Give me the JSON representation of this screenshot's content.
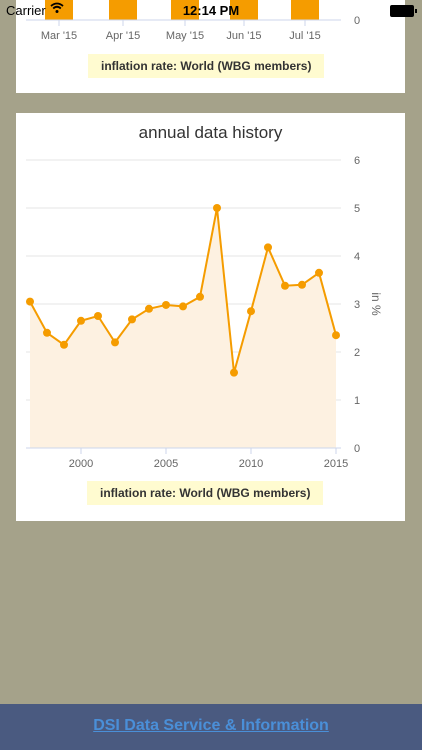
{
  "status_bar": {
    "carrier": "Carrier",
    "time": "12:14 PM"
  },
  "monthly_card": {
    "x_labels": [
      "Mar '15",
      "Apr '15",
      "May '15",
      "Jun '15",
      "Jul '15"
    ],
    "y_tick": "0",
    "legend": "inflation rate: World (WBG members)",
    "bar_color": "#f59c00"
  },
  "annual_card": {
    "title": "annual data history",
    "legend": "inflation rate: World (WBG members)",
    "chart_data": {
      "type": "area",
      "x": [
        1997,
        1998,
        1999,
        2000,
        2001,
        2002,
        2003,
        2004,
        2005,
        2006,
        2007,
        2008,
        2009,
        2010,
        2011,
        2012,
        2013,
        2014,
        2015
      ],
      "series": [
        {
          "values": [
            3.05,
            2.4,
            2.15,
            2.65,
            2.75,
            2.2,
            2.68,
            2.9,
            2.98,
            2.95,
            3.15,
            5.0,
            1.57,
            2.85,
            4.18,
            3.38,
            3.4,
            3.65,
            2.35
          ]
        }
      ],
      "x_ticks": [
        "2000",
        "2005",
        "2010",
        "2015"
      ],
      "y_ticks": [
        "0",
        "1",
        "2",
        "3",
        "4",
        "5",
        "6"
      ],
      "ylabel": "in %",
      "ylim": [
        0,
        6
      ],
      "xlim": [
        1997,
        2015
      ],
      "grid": true,
      "line_color": "#f59c00",
      "fill_color": "#fdf1e1"
    }
  },
  "footer": {
    "link": "DSI Data Service & Information"
  }
}
